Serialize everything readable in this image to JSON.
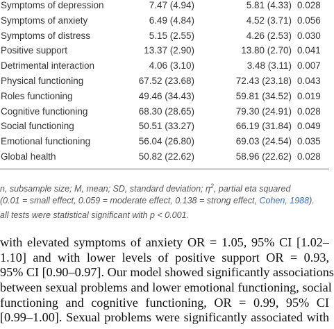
{
  "table": {
    "rows": [
      [
        "Symptoms of depression",
        "7.47 (4.94)",
        "5.81 (4.33)",
        "0.028"
      ],
      [
        "Symptoms of anxiety",
        "6.49 (4.84)",
        "4.52 (3.71)",
        "0.056"
      ],
      [
        "Symptoms of distress",
        "5.15 (2.55)",
        "4.26 (2.53)",
        "0.030"
      ],
      [
        "Positive support",
        "13.37 (2.90)",
        "13.80 (2.70)",
        "0.041"
      ],
      [
        "Detrimental interaction",
        "4.06 (3.10)",
        "3.48 (3.11)",
        "0.007"
      ],
      [
        "Physical functioning",
        "67.52 (23.68)",
        "72.43 (23.18)",
        "0.043"
      ],
      [
        "Roles functioning",
        "49.46 (34.43)",
        "59.81 (34.52)",
        "0.019"
      ],
      [
        "Cognitive functioning",
        "68.30 (28.65)",
        "79.30 (24.91)",
        "0.028"
      ],
      [
        "Social functioning",
        "50.51 (33.27)",
        "66.19 (31.84)",
        "0.049"
      ],
      [
        "Emotional functioning",
        "56.04 (26.80)",
        "69.03 (24.54)",
        "0.035"
      ],
      [
        "Global health",
        "50.82 (22.62)",
        "58.96 (22.62)",
        "0.028"
      ]
    ]
  },
  "footnote": {
    "line1": {
      "text": "n, subsample size; M, mean; SD, standard deviation; η",
      "sup": "2",
      "rest": ", partial eta squared"
    },
    "line2": {
      "text": "(0.01 = small effect, 0.059 = moderate effect, 0.138 = strong effect, ",
      "link": "Cohen, 1988",
      "rest": ")."
    },
    "line3": "all tests were statistical significant with p < 0.001."
  },
  "body": {
    "lines": [
      "with elevated symptoms of anxiety OR = 1.05, 95% CI [1.02–",
      "1.10] and with lower levels of positive support OR = 0.93,",
      "95% CI [0.90–0.97]. Our model showed significantly associations",
      "between sexual problems and lower emotional functioning, social",
      "functioning and cognitive functioning, OR = 0.99, 95% CI",
      "[0.99–1.00]. Sexual problems were significantly associated with"
    ]
  }
}
